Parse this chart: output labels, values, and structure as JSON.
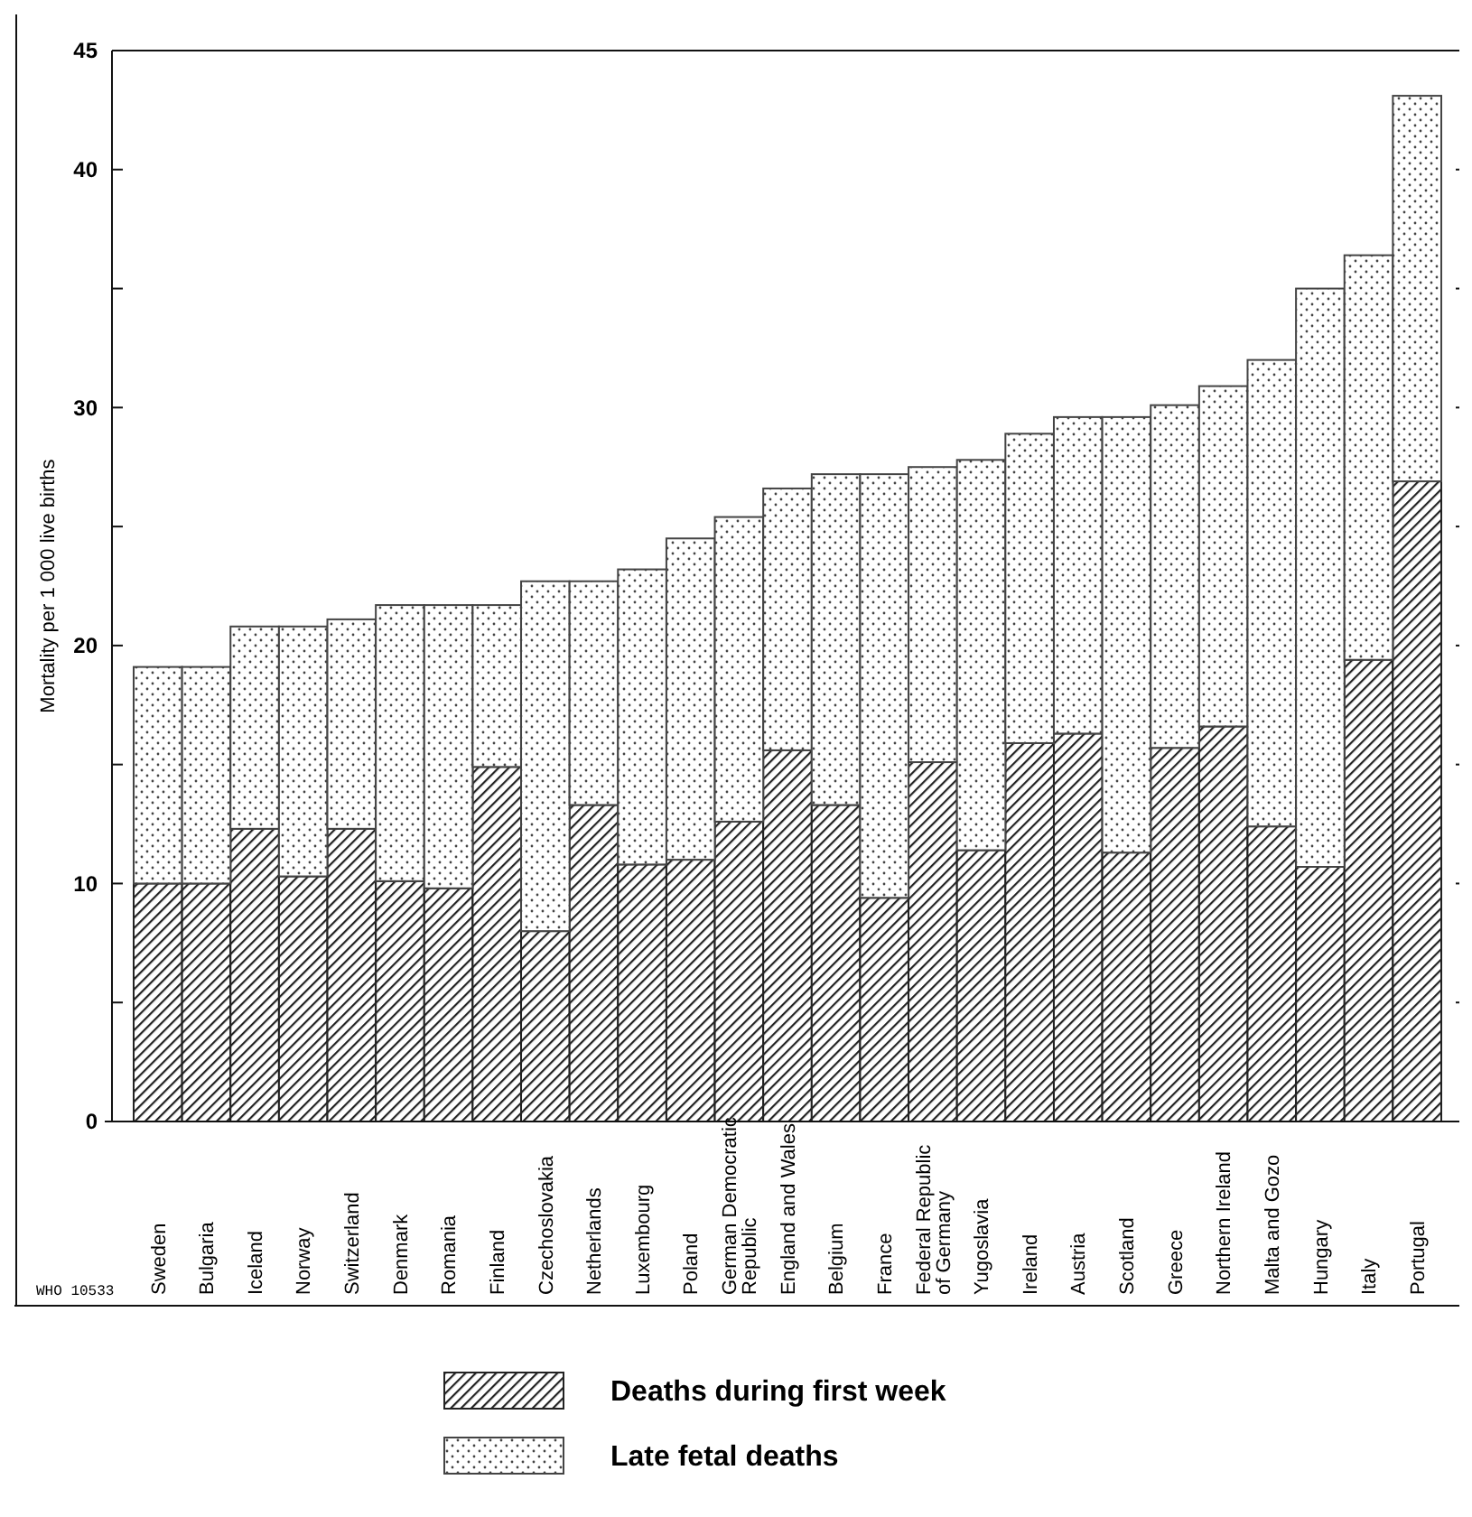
{
  "chart_data": {
    "type": "bar",
    "stacked": true,
    "ylabel": "Mortality per 1 000 live births",
    "categories": [
      "Sweden",
      "Bulgaria",
      "Iceland",
      "Norway",
      "Switzerland",
      "Denmark",
      "Romania",
      "Finland",
      "Czechoslovakia",
      "Netherlands",
      "Luxembourg",
      "Poland",
      "German Democratic Republic",
      "England and Wales",
      "Belgium",
      "France",
      "Federal Republic of Germany",
      "Yugoslavia",
      "Ireland",
      "Austria",
      "Scotland",
      "Greece",
      "Northern Ireland",
      "Malta and Gozo",
      "Hungary",
      "Italy",
      "Portugal"
    ],
    "series": [
      {
        "name": "Deaths during first week",
        "color": "#222222",
        "values": [
          10.0,
          10.0,
          12.3,
          10.3,
          12.3,
          10.1,
          9.8,
          14.9,
          8.0,
          13.3,
          10.8,
          11.0,
          12.6,
          15.6,
          13.3,
          9.4,
          15.1,
          11.4,
          15.9,
          16.3,
          11.3,
          15.7,
          16.6,
          12.4,
          10.7,
          19.4,
          26.9
        ]
      },
      {
        "name": "Late fetal deaths",
        "color": "#444444",
        "values": [
          9.1,
          9.1,
          8.5,
          10.5,
          8.8,
          11.6,
          11.9,
          6.8,
          14.7,
          9.4,
          12.4,
          13.5,
          12.8,
          11.0,
          13.9,
          17.8,
          12.4,
          16.4,
          13.0,
          13.3,
          18.3,
          14.4,
          14.3,
          19.6,
          24.3,
          17.0,
          16.2
        ]
      }
    ],
    "ylim": [
      0,
      45
    ],
    "yticks": [
      0,
      {
        "value": 5,
        "label": null
      },
      10,
      {
        "value": 15,
        "label": null
      },
      20,
      {
        "value": 25,
        "label": null
      },
      30,
      {
        "value": 35,
        "label": null
      },
      40,
      45
    ],
    "legend": "bottom",
    "grid": false,
    "annotations": [
      "WHO 10533"
    ]
  }
}
